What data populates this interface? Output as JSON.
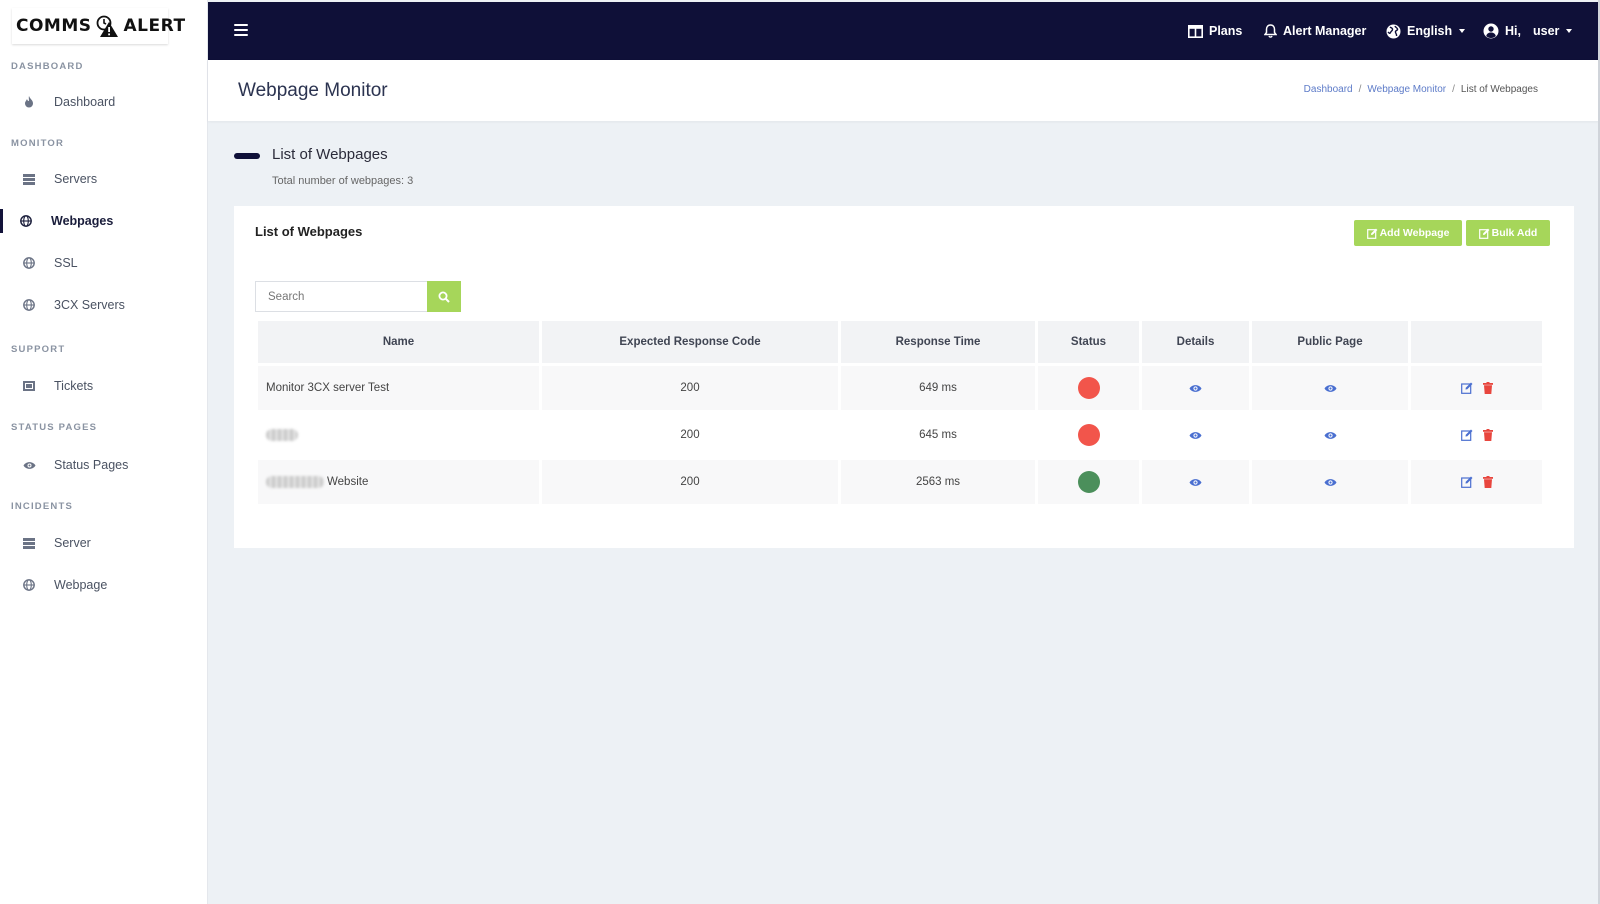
{
  "brand": {
    "part1": "COMMS",
    "part2": "ALERT"
  },
  "sidebar": {
    "sections": [
      {
        "title": "DASHBOARD",
        "items": [
          {
            "label": "Dashboard",
            "icon": "fire-icon"
          }
        ]
      },
      {
        "title": "MONITOR",
        "items": [
          {
            "label": "Servers",
            "icon": "server-icon"
          },
          {
            "label": "Webpages",
            "icon": "globe-icon",
            "active": true
          },
          {
            "label": "SSL",
            "icon": "globe-icon"
          },
          {
            "label": "3CX Servers",
            "icon": "globe-icon"
          }
        ]
      },
      {
        "title": "SUPPORT",
        "items": [
          {
            "label": "Tickets",
            "icon": "ticket-icon"
          }
        ]
      },
      {
        "title": "STATUS PAGES",
        "items": [
          {
            "label": "Status Pages",
            "icon": "eye-icon"
          }
        ]
      },
      {
        "title": "INCIDENTS",
        "items": [
          {
            "label": "Server",
            "icon": "server-icon"
          },
          {
            "label": "Webpage",
            "icon": "globe-icon"
          }
        ]
      }
    ]
  },
  "topbar": {
    "plans": "Plans",
    "alert_manager": "Alert Manager",
    "language": "English",
    "greeting": "Hi,",
    "user": "user"
  },
  "page": {
    "title": "Webpage Monitor",
    "breadcrumb": [
      "Dashboard",
      "Webpage Monitor",
      "List of Webpages"
    ]
  },
  "list": {
    "heading": "List of Webpages",
    "count_text": "Total number of webpages: 3"
  },
  "card": {
    "title": "List of Webpages",
    "add_button": "Add Webpage",
    "bulk_button": "Bulk Add",
    "search_placeholder": "Search"
  },
  "table": {
    "headers": [
      "Name",
      "Expected Response Code",
      "Response Time",
      "Status",
      "Details",
      "Public Page",
      ""
    ],
    "rows": [
      {
        "name": "Monitor 3CX server Test",
        "code": "200",
        "time": "649 ms",
        "status": "down"
      },
      {
        "name": "",
        "code": "200",
        "time": "645 ms",
        "status": "down"
      },
      {
        "name": "Website",
        "code": "200",
        "time": "2563 ms",
        "status": "up"
      }
    ]
  },
  "colors": {
    "navy": "#0f1038",
    "accent_green": "#a6d65a",
    "status_down": "#f2554b",
    "status_up": "#4b8f5b",
    "link_blue": "#5d7bc8",
    "delete_red": "#e8463e"
  }
}
